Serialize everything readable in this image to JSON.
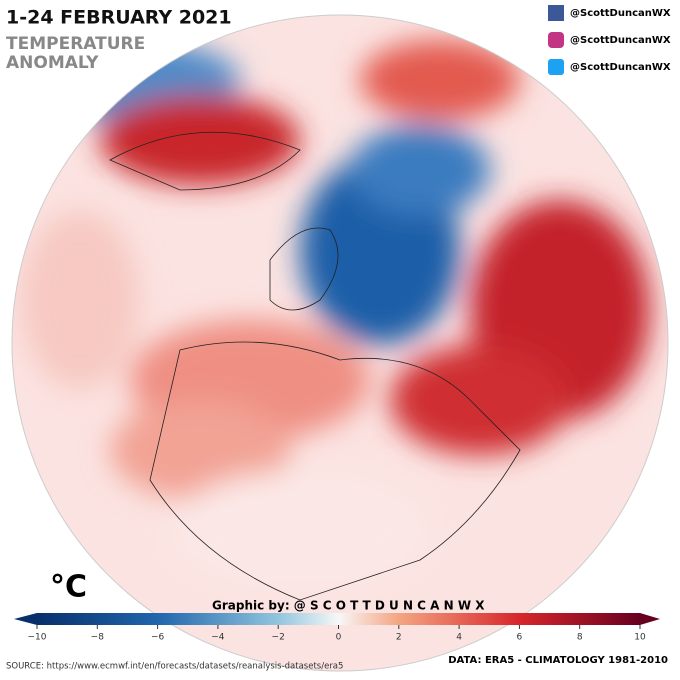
{
  "header": {
    "title": "1-24 FEBRUARY 2021",
    "subtitle": [
      "TEMPERATURE",
      "ANOMALY"
    ]
  },
  "social": [
    "@ScottDuncanWX",
    "@ScottDuncanWX",
    "@ScottDuncanWX"
  ],
  "colorbar": {
    "unit": "°C",
    "range": [
      -10,
      10
    ],
    "ticks": [
      {
        "value": -10,
        "label": "−10"
      },
      {
        "value": -8,
        "label": "−8"
      },
      {
        "value": -6,
        "label": "−6"
      },
      {
        "value": -4,
        "label": "−4"
      },
      {
        "value": -2,
        "label": "−2"
      },
      0,
      2,
      4,
      6,
      8,
      10
    ]
  },
  "credit": "Graphic by: @ S C O T T D U N C A N W X",
  "footer": {
    "source": "SOURCE: https://www.ecmwf.int/en/forecasts/datasets/reanalysis-datasets/era5",
    "data": "DATA: ERA5 - CLIMATOLOGY 1981-2010"
  }
}
